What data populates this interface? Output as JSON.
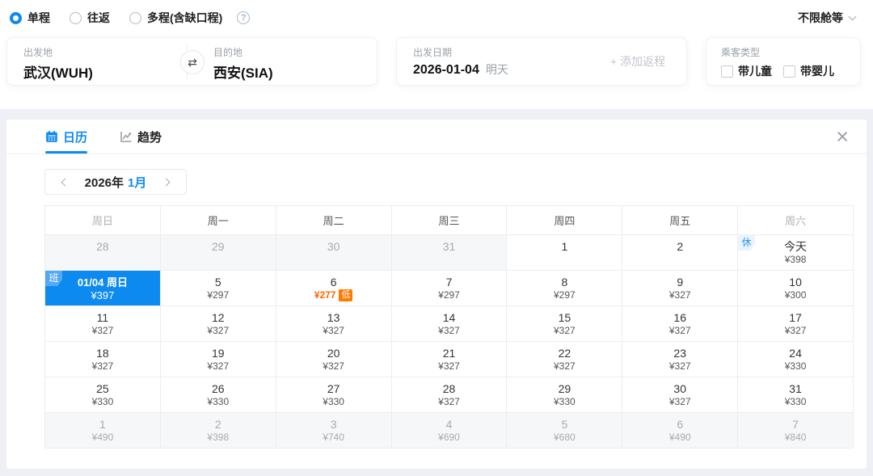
{
  "colors": {
    "accent_blue": "#0d8af0",
    "price_orange": "#ff6600",
    "tag_orange": "#ff7a00",
    "page_gray": "#eef0f5",
    "selected_cell_blue": "#0d8af0"
  },
  "icons": {
    "swap": "⇄",
    "close": "×",
    "help": "?"
  },
  "trip_type": {
    "options": [
      {
        "label": "单程",
        "selected": true
      },
      {
        "label": "往返",
        "selected": false
      },
      {
        "label": "多程(含缺口程)",
        "selected": false
      }
    ]
  },
  "cabin_class": {
    "label": "不限舱等"
  },
  "search": {
    "departure": {
      "label": "出发地",
      "value": "武汉(WUH)"
    },
    "destination": {
      "label": "目的地",
      "value": "西安(SIA)"
    },
    "date": {
      "label": "出发日期",
      "value": "2026-01-04",
      "hint": "明天"
    },
    "add_return_label": "+ 添加返程",
    "passenger": {
      "label": "乘客类型",
      "child_label": "带儿童",
      "infant_label": "带婴儿"
    }
  },
  "calendar": {
    "tabs": [
      {
        "label": "日历",
        "active": true
      },
      {
        "label": "趋势",
        "active": false
      }
    ],
    "month_nav": {
      "year": "2026年",
      "month": "1月"
    },
    "weekdays": [
      {
        "label": "周日",
        "muted": true
      },
      {
        "label": "周一",
        "muted": false
      },
      {
        "label": "周二",
        "muted": false
      },
      {
        "label": "周三",
        "muted": false
      },
      {
        "label": "周四",
        "muted": false
      },
      {
        "label": "周五",
        "muted": false
      },
      {
        "label": "周六",
        "muted": true
      }
    ],
    "weeks": [
      [
        {
          "day": "28",
          "price": "",
          "muted": true
        },
        {
          "day": "29",
          "price": "",
          "muted": true
        },
        {
          "day": "30",
          "price": "",
          "muted": true
        },
        {
          "day": "31",
          "price": "",
          "muted": true
        },
        {
          "day": "1",
          "price": ""
        },
        {
          "day": "2",
          "price": ""
        },
        {
          "day": "今天",
          "price": "¥398",
          "badge": "休"
        }
      ],
      [
        {
          "day": "01/04 周日",
          "price": "¥397",
          "selected": true,
          "badge": "班"
        },
        {
          "day": "5",
          "price": "¥297"
        },
        {
          "day": "6",
          "price": "¥277",
          "low": true,
          "tag": "低"
        },
        {
          "day": "7",
          "price": "¥297"
        },
        {
          "day": "8",
          "price": "¥297"
        },
        {
          "day": "9",
          "price": "¥327"
        },
        {
          "day": "10",
          "price": "¥300"
        }
      ],
      [
        {
          "day": "11",
          "price": "¥327"
        },
        {
          "day": "12",
          "price": "¥327"
        },
        {
          "day": "13",
          "price": "¥327"
        },
        {
          "day": "14",
          "price": "¥327"
        },
        {
          "day": "15",
          "price": "¥327"
        },
        {
          "day": "16",
          "price": "¥327"
        },
        {
          "day": "17",
          "price": "¥327"
        }
      ],
      [
        {
          "day": "18",
          "price": "¥327"
        },
        {
          "day": "19",
          "price": "¥327"
        },
        {
          "day": "20",
          "price": "¥327"
        },
        {
          "day": "21",
          "price": "¥327"
        },
        {
          "day": "22",
          "price": "¥327"
        },
        {
          "day": "23",
          "price": "¥327"
        },
        {
          "day": "24",
          "price": "¥330"
        }
      ],
      [
        {
          "day": "25",
          "price": "¥330"
        },
        {
          "day": "26",
          "price": "¥330"
        },
        {
          "day": "27",
          "price": "¥330"
        },
        {
          "day": "28",
          "price": "¥327"
        },
        {
          "day": "29",
          "price": "¥330"
        },
        {
          "day": "30",
          "price": "¥327"
        },
        {
          "day": "31",
          "price": "¥330"
        }
      ],
      [
        {
          "day": "1",
          "price": "¥490",
          "muted": true
        },
        {
          "day": "2",
          "price": "¥398",
          "muted": true
        },
        {
          "day": "3",
          "price": "¥740",
          "muted": true
        },
        {
          "day": "4",
          "price": "¥690",
          "muted": true
        },
        {
          "day": "5",
          "price": "¥680",
          "muted": true
        },
        {
          "day": "6",
          "price": "¥490",
          "muted": true
        },
        {
          "day": "7",
          "price": "¥840",
          "muted": true
        }
      ]
    ]
  }
}
